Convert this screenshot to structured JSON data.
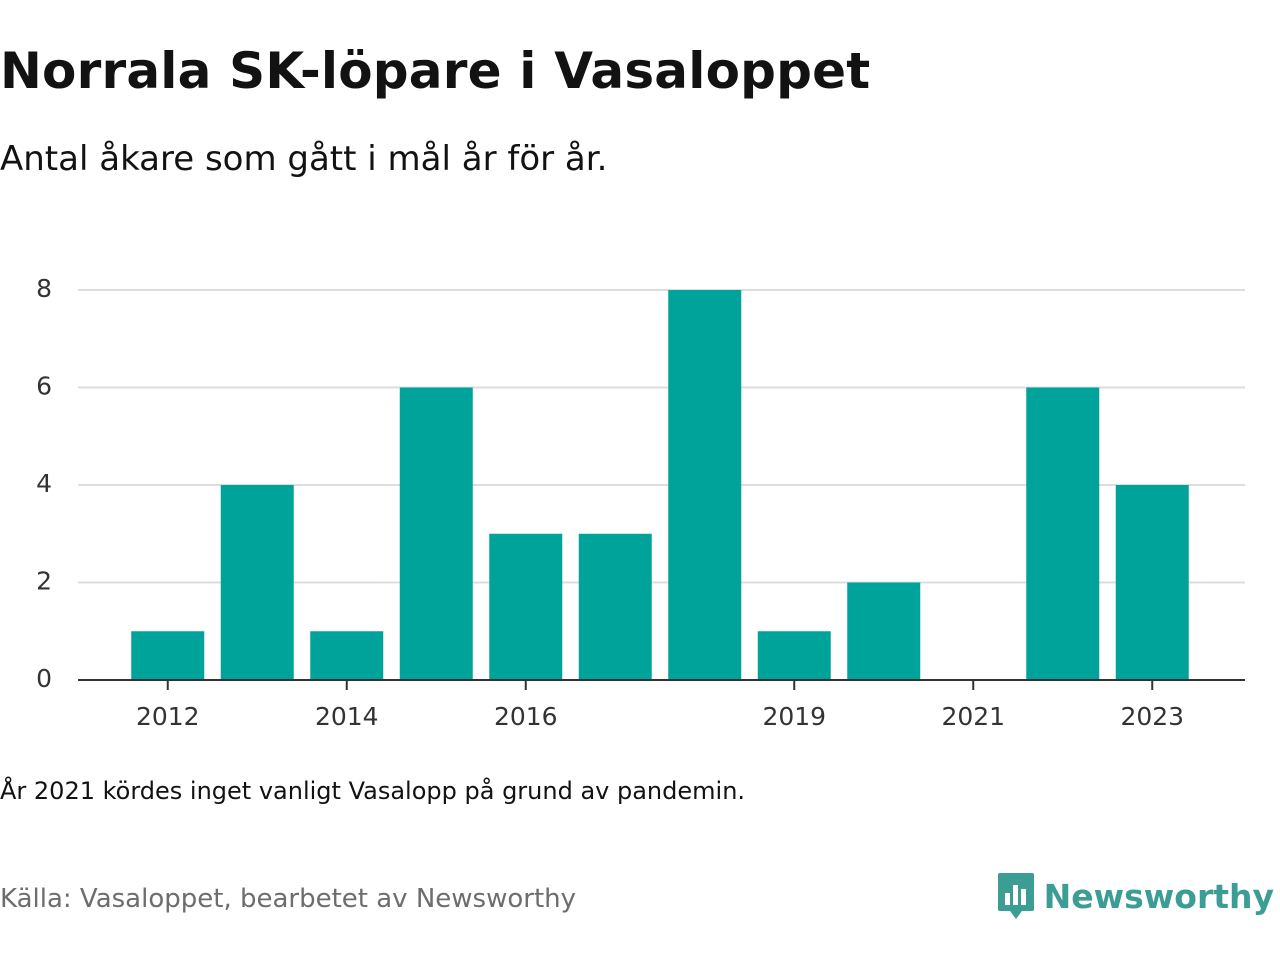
{
  "header": {
    "title": "Norrala SK-löpare i Vasaloppet",
    "subtitle": "Antal åkare som gått i mål år för år."
  },
  "footer": {
    "note": "År 2021 kördes inget vanligt Vasalopp på grund av pandemin.",
    "source": "Källa: Vasaloppet, bearbetet av Newsworthy",
    "brand_name": "Newsworthy",
    "brand_icon": "newsworthy-logo-icon"
  },
  "colors": {
    "bar": "#00a39a",
    "grid": "#dddddd",
    "axis": "#333333",
    "brand": "#3c9d95"
  },
  "chart_data": {
    "type": "bar",
    "categories": [
      "2012",
      "2013",
      "2014",
      "2015",
      "2016",
      "2017",
      "2018",
      "2019",
      "2020",
      "2021",
      "2022",
      "2023"
    ],
    "values": [
      1,
      4,
      1,
      6,
      3,
      3,
      8,
      1,
      2,
      0,
      6,
      4
    ],
    "shown_x_ticks": [
      "2012",
      "2014",
      "2016",
      "2019",
      "2021",
      "2023"
    ],
    "y_ticks": [
      0,
      2,
      4,
      6,
      8
    ],
    "ylim": [
      0,
      8
    ],
    "xlabel": "",
    "ylabel": "",
    "grid": true,
    "legend": "none"
  }
}
